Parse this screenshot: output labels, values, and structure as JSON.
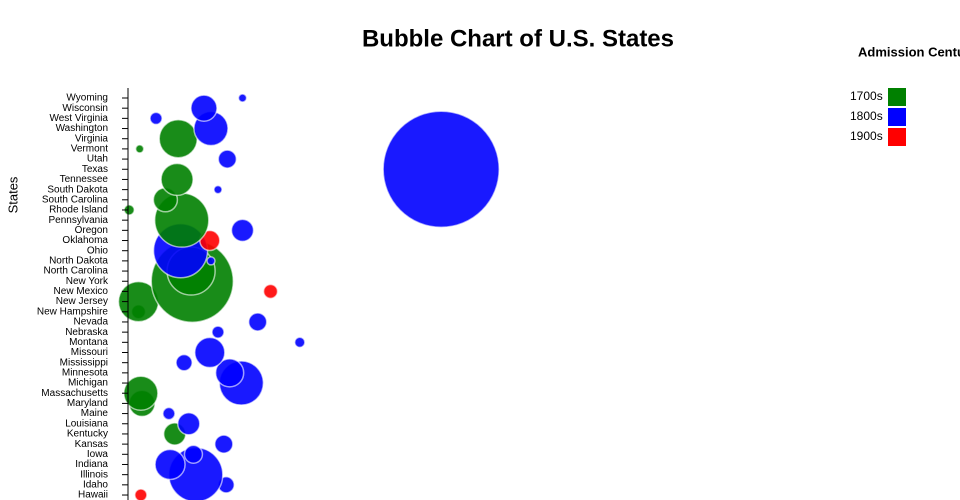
{
  "chart_data": {
    "type": "bubble",
    "title": "Bubble Chart of U.S. States",
    "y_label": "States",
    "legend_title": "Admission Century",
    "series": [
      {
        "name": "1700s",
        "color": "green"
      },
      {
        "name": "1800s",
        "color": "blue"
      },
      {
        "name": "1900s",
        "color": "red"
      }
    ],
    "categories": [
      "Wyoming",
      "Wisconsin",
      "West Virginia",
      "Washington",
      "Virginia",
      "Vermont",
      "Utah",
      "Texas",
      "Tennessee",
      "South Dakota",
      "South Carolina",
      "Rhode Island",
      "Pennsylvania",
      "Oregon",
      "Oklahoma",
      "Ohio",
      "North Dakota",
      "North Carolina",
      "New York",
      "New Mexico",
      "New Jersey",
      "New Hampshire",
      "Nevada",
      "Nebraska",
      "Montana",
      "Missouri",
      "Mississippi",
      "Minnesota",
      "Michigan",
      "Massachusetts",
      "Maryland",
      "Maine",
      "Louisiana",
      "Kentucky",
      "Kansas",
      "Iowa",
      "Indiana",
      "Illinois",
      "Idaho",
      "Hawaii"
    ],
    "century": [
      "1800s",
      "1800s",
      "1800s",
      "1800s",
      "1700s",
      "1700s",
      "1800s",
      "1800s",
      "1700s",
      "1800s",
      "1700s",
      "1700s",
      "1700s",
      "1800s",
      "1900s",
      "1800s",
      "1800s",
      "1700s",
      "1700s",
      "1900s",
      "1700s",
      "1700s",
      "1800s",
      "1800s",
      "1800s",
      "1800s",
      "1800s",
      "1800s",
      "1800s",
      "1700s",
      "1700s",
      "1800s",
      "1800s",
      "1700s",
      "1800s",
      "1800s",
      "1800s",
      "1800s",
      "1800s",
      "1900s"
    ],
    "x": [
      98,
      65,
      24,
      71,
      43,
      10,
      85,
      268,
      42,
      77,
      32,
      1,
      46,
      98,
      70,
      45,
      71,
      54,
      55,
      122,
      9,
      9,
      111,
      77,
      147,
      70,
      48,
      87,
      97,
      11,
      12,
      35,
      52,
      40,
      82,
      56,
      36,
      58,
      84,
      11
    ],
    "sizes": [
      0.12,
      1.26,
      0.27,
      2.15,
      2.68,
      0.12,
      0.6,
      25,
      1.9,
      0.12,
      1.07,
      0.19,
      5.42,
      0.9,
      0.74,
      5.42,
      0.12,
      4.28,
      12.49,
      0.36,
      2.97,
      0.36,
      0.6,
      0.27,
      0.19,
      1.67,
      0.48,
      1.46,
      3.6,
      2.15,
      1.26,
      0.27,
      0.9,
      0.9,
      0.6,
      0.6,
      1.67,
      5.42,
      0.48,
      0.27
    ],
    "xlim": [
      0,
      712
    ]
  }
}
